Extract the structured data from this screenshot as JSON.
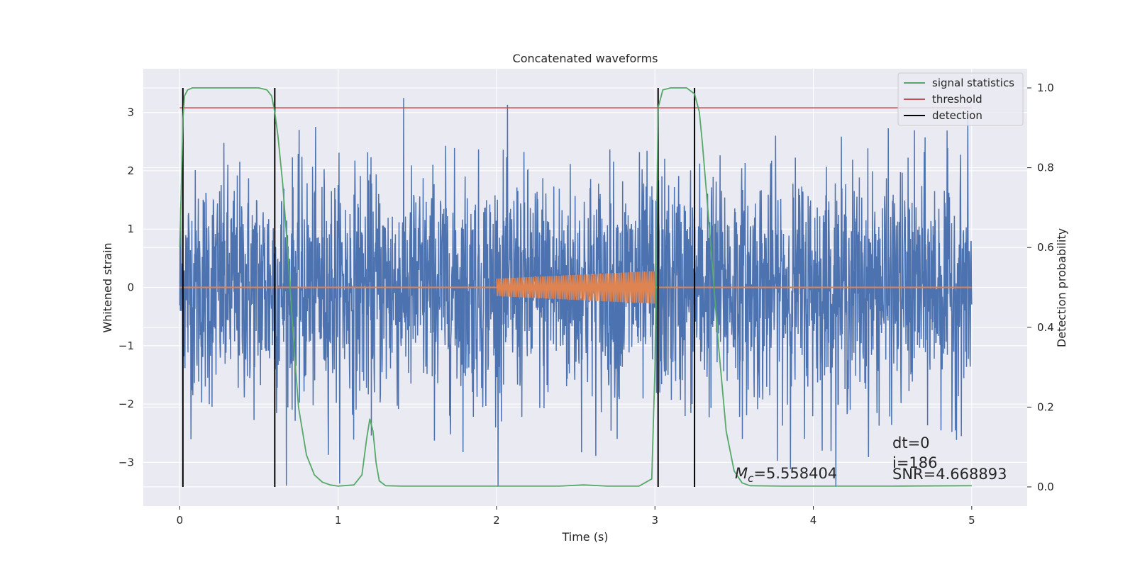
{
  "chart_data": {
    "type": "line",
    "title": "Concatenated waveforms",
    "xlabel": "Time (s)",
    "ylabel": "Whitened strain",
    "ylabel_right": "Detection probability",
    "xlim": [
      -0.23,
      5.35
    ],
    "ylim": [
      -3.75,
      3.75
    ],
    "ylim_right": [
      -0.048,
      1.048
    ],
    "x_ticks": [
      0,
      1,
      2,
      3,
      4,
      5
    ],
    "y_ticks": [
      -3,
      -2,
      -1,
      0,
      1,
      2,
      3
    ],
    "y_ticks_right": [
      0.0,
      0.2,
      0.4,
      0.6,
      0.8,
      1.0
    ],
    "x_tick_labels": [
      "0",
      "1",
      "2",
      "3",
      "4",
      "5"
    ],
    "y_tick_labels": [
      "−3",
      "−2",
      "−1",
      "0",
      "1",
      "2",
      "3"
    ],
    "y_tick_labels_right": [
      "0.0",
      "0.2",
      "0.4",
      "0.6",
      "0.8",
      "1.0"
    ],
    "grid": true,
    "legend_placement": "top-right",
    "legend": [
      {
        "label": "signal statistics",
        "color": "#55a868"
      },
      {
        "label": "threshold",
        "color": "#c44e52"
      },
      {
        "label": "detection",
        "color": "#000000"
      }
    ],
    "strain": {
      "color": "#4c72b0",
      "x_start": 0,
      "x_end": 5,
      "typical_amplitude": 1.6,
      "max_amplitude": 3.4
    },
    "injected_waveform": {
      "color": "#dd8452",
      "x_start": 2.0,
      "x_end": 3.0,
      "amp_start": 0.15,
      "amp_end": 0.28
    },
    "zero_line": {
      "color": "#dd8452",
      "x_start": 0,
      "x_end": 5,
      "y": 0
    },
    "threshold": {
      "value": 0.95,
      "x_start": 0,
      "x_end": 5
    },
    "detections": [
      0.02,
      0.6,
      3.02,
      3.25
    ],
    "signal_statistics": {
      "x": [
        0,
        0.01,
        0.02,
        0.03,
        0.05,
        0.08,
        0.1,
        0.2,
        0.3,
        0.4,
        0.5,
        0.55,
        0.58,
        0.6,
        0.62,
        0.65,
        0.68,
        0.7,
        0.72,
        0.75,
        0.8,
        0.85,
        0.9,
        0.95,
        1.0,
        1.1,
        1.15,
        1.18,
        1.2,
        1.22,
        1.24,
        1.26,
        1.3,
        1.4,
        1.6,
        2.0,
        2.4,
        2.55,
        2.7,
        2.9,
        2.98,
        3.0,
        3.02,
        3.05,
        3.1,
        3.2,
        3.25,
        3.28,
        3.3,
        3.35,
        3.4,
        3.45,
        3.5,
        3.55,
        3.6,
        3.8,
        4.0,
        4.5,
        5.0
      ],
      "y": [
        0.6,
        0.75,
        0.92,
        0.98,
        0.995,
        1.0,
        1.0,
        1.0,
        1.0,
        1.0,
        1.0,
        0.995,
        0.98,
        0.94,
        0.88,
        0.76,
        0.6,
        0.48,
        0.36,
        0.2,
        0.08,
        0.03,
        0.012,
        0.005,
        0.002,
        0.005,
        0.03,
        0.12,
        0.17,
        0.14,
        0.06,
        0.015,
        0.003,
        0.002,
        0.002,
        0.002,
        0.002,
        0.005,
        0.002,
        0.002,
        0.02,
        0.3,
        0.95,
        0.995,
        1.0,
        1.0,
        0.985,
        0.94,
        0.86,
        0.62,
        0.36,
        0.14,
        0.04,
        0.01,
        0.003,
        0.002,
        0.002,
        0.002,
        0.003
      ]
    },
    "annotations": {
      "mc_symbol": "M",
      "mc_subscript": "c",
      "mc_value": "=5.558404",
      "dt": "dt=0",
      "i": "i=186",
      "snr": "SNR=4.668893"
    }
  }
}
